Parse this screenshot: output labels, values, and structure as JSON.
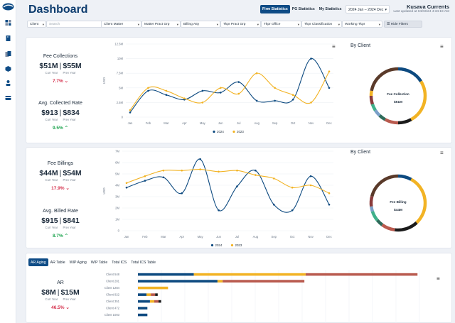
{
  "header": {
    "title": "Dashboard",
    "tabs": [
      {
        "label": "Firm Statistics",
        "active": true
      },
      {
        "label": "PG Statistics",
        "active": false
      },
      {
        "label": "My Statistics",
        "active": false
      }
    ],
    "date_range": "2024 Jan – 2024 Dec",
    "user": "Kusava Currents",
    "updated": "Last updated at 04/03/24 4:34:19 AM"
  },
  "filters": {
    "client": "Client",
    "search_placeholder": "Search",
    "items": [
      "Client Matter",
      "Matter Pract Grp",
      "Billing Atty",
      "Tkpr Pract Grp",
      "Tkpr Office",
      "Tkpr Classification",
      "Working Tkpr"
    ],
    "hide_label": "Hide Filters"
  },
  "card1": {
    "kpis": [
      {
        "title": "Fee Collections",
        "curr": "$51M",
        "prev": "$55M",
        "delta": "7.7%",
        "dir": "down",
        "curr_label": "Curr Year",
        "prev_label": "Prev Year"
      },
      {
        "title": "Avg. Collected Rate",
        "curr": "$913",
        "prev": "$834",
        "delta": "9.5%",
        "dir": "up",
        "curr_label": "Curr Year",
        "prev_label": "Prev Year"
      }
    ],
    "donut_title": "By Client",
    "donut_center_line1": "Fee Collection",
    "donut_center_line2": "$51M"
  },
  "card2": {
    "kpis": [
      {
        "title": "Fee Billings",
        "curr": "$44M",
        "prev": "$54M",
        "delta": "17.9%",
        "dir": "down",
        "curr_label": "Curr Year",
        "prev_label": "Prev Year"
      },
      {
        "title": "Avg. Billed Rate",
        "curr": "$915",
        "prev": "$841",
        "delta": "8.7%",
        "dir": "up",
        "curr_label": "Curr Year",
        "prev_label": "Prev Year"
      }
    ],
    "donut_title": "By Client",
    "donut_center_line1": "Fee Billing",
    "donut_center_line2": "$44M"
  },
  "card3": {
    "tabs": [
      {
        "label": "AR Aging",
        "active": true
      },
      {
        "label": "AR Table",
        "active": false
      },
      {
        "label": "WIP Aging",
        "active": false
      },
      {
        "label": "WIP Table",
        "active": false
      },
      {
        "label": "Total ICS",
        "active": false
      },
      {
        "label": "Total ICS Table",
        "active": false
      }
    ],
    "kpi": {
      "title": "AR",
      "curr": "$8M",
      "prev": "$15M",
      "delta": "46.5%",
      "dir": "down",
      "curr_label": "Curr Year",
      "prev_label": "Prev Year"
    }
  },
  "chart_data": [
    {
      "type": "line",
      "months": [
        "Jan",
        "Feb",
        "Mar",
        "Apr",
        "May",
        "Jun",
        "Jul",
        "Aug",
        "Sep",
        "Oct",
        "Nov",
        "Dec"
      ],
      "yticks": [
        "0",
        "2.5M",
        "5M",
        "7.5M",
        "10M",
        "12.5M"
      ],
      "ymax": 12500000.0,
      "ylabel": "USD",
      "series": [
        {
          "name": "2024",
          "color": "#0d4a80",
          "values": [
            800000.0,
            4500000.0,
            3800000.0,
            3000000.0,
            4500000.0,
            4200000.0,
            6000000.0,
            2800000.0,
            2800000.0,
            3000000.0,
            10000000.0,
            5000000.0
          ]
        },
        {
          "name": "2023",
          "color": "#f2b324",
          "values": [
            1200000.0,
            5000000.0,
            4500000.0,
            3200000.0,
            2500000.0,
            5000000.0,
            4000000.0,
            7500000.0,
            5000000.0,
            3800000.0,
            2500000.0,
            7800000.0
          ]
        }
      ]
    },
    {
      "type": "line",
      "months": [
        "Jan",
        "Feb",
        "Mar",
        "Apr",
        "May",
        "Jun",
        "Jul",
        "Aug",
        "Sep",
        "Oct",
        "Nov",
        "Dec"
      ],
      "yticks": [
        "0",
        "1M",
        "2M",
        "3M",
        "4M",
        "5M",
        "6M",
        "7M"
      ],
      "ymax": 7000000.0,
      "ylabel": "USD",
      "series": [
        {
          "name": "2024",
          "color": "#0d4a80",
          "values": [
            3800000.0,
            4400000.0,
            4700000.0,
            3300000.0,
            6300000.0,
            1800000.0,
            3900000.0,
            5300000.0,
            2300000.0,
            1800000.0,
            4800000.0,
            2300000.0
          ]
        },
        {
          "name": "2023",
          "color": "#f2b324",
          "values": [
            4200000.0,
            4800000.0,
            5300000.0,
            5300000.0,
            5400000.0,
            5200000.0,
            5300000.0,
            4900000.0,
            4600000.0,
            3800000.0,
            4000000.0,
            3300000.0
          ]
        }
      ]
    },
    {
      "type": "bar",
      "stacked": true,
      "categories": [
        "Client 548",
        "Client 281",
        "Client 1284",
        "Client 922",
        "Client 351",
        "Client 472",
        "Client 1003"
      ],
      "series": [
        {
          "color": "#0d4a80",
          "values": [
            130,
            185,
            0,
            20,
            28,
            22,
            22
          ]
        },
        {
          "color": "#f2b324",
          "values": [
            260,
            12,
            70,
            10,
            10,
            0,
            0
          ]
        },
        {
          "color": "#b95a4e",
          "values": [
            260,
            190,
            0,
            10,
            10,
            0,
            0
          ]
        },
        {
          "color": "#1b1b1b",
          "values": [
            0,
            0,
            0,
            6,
            6,
            0,
            0
          ]
        }
      ]
    }
  ],
  "donuts": [
    {
      "segments": [
        {
          "color": "#0d4a80",
          "value": 16
        },
        {
          "color": "#f2b324",
          "value": 26
        },
        {
          "color": "#1b1b1b",
          "value": 8
        },
        {
          "color": "#b95a4e",
          "value": 8
        },
        {
          "color": "#2e6b5a",
          "value": 4
        },
        {
          "color": "#7aa0c8",
          "value": 4
        },
        {
          "color": "#3fb08a",
          "value": 4
        },
        {
          "color": "#8a3b3b",
          "value": 5
        },
        {
          "color": "#f2b324",
          "value": 3
        },
        {
          "color": "#5a3a2a",
          "value": 22
        }
      ]
    },
    {
      "segments": [
        {
          "color": "#0d4a80",
          "value": 8
        },
        {
          "color": "#f2b324",
          "value": 30
        },
        {
          "color": "#1b1b1b",
          "value": 14
        },
        {
          "color": "#b95a4e",
          "value": 8
        },
        {
          "color": "#2e6b5a",
          "value": 4
        },
        {
          "color": "#3fb08a",
          "value": 6
        },
        {
          "color": "#7aa0c8",
          "value": 3
        },
        {
          "color": "#8a3b3b",
          "value": 6
        },
        {
          "color": "#5a3a2a",
          "value": 21
        }
      ]
    }
  ]
}
